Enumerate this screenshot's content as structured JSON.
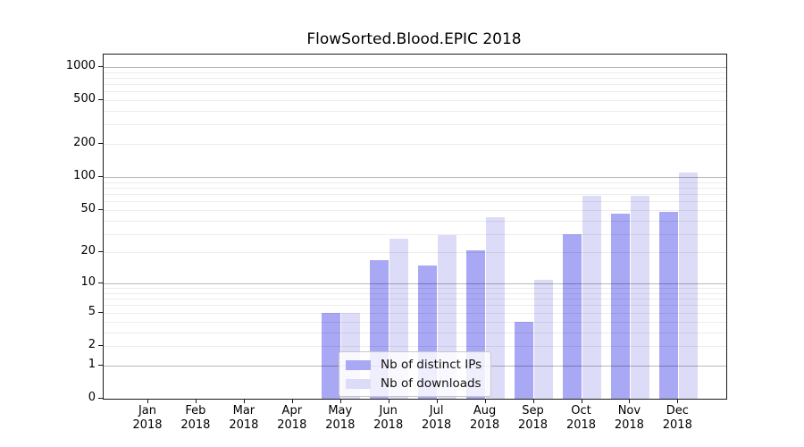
{
  "chart_data": {
    "type": "bar",
    "title": "FlowSorted.Blood.EPIC 2018",
    "months": [
      "Jan",
      "Feb",
      "Mar",
      "Apr",
      "May",
      "Jun",
      "Jul",
      "Aug",
      "Sep",
      "Oct",
      "Nov",
      "Dec"
    ],
    "year": "2018",
    "series": [
      {
        "name": "Nb of distinct IPs",
        "color": "#a8a8f5",
        "values": [
          0,
          0,
          0,
          0,
          5,
          17,
          15,
          21,
          4,
          30,
          46,
          48
        ]
      },
      {
        "name": "Nb of downloads",
        "color": "#dcdcf8",
        "values": [
          0,
          0,
          0,
          0,
          5,
          27,
          29,
          43,
          11,
          68,
          68,
          111
        ]
      }
    ],
    "xlabel": "",
    "ylabel": "",
    "y_scale": "log10(1+y)",
    "ylim": [
      0,
      1000
    ],
    "y_ticks": [
      0,
      1,
      2,
      5,
      10,
      20,
      50,
      100,
      200,
      500,
      1000
    ],
    "grid": {
      "major_lines": [
        1,
        10,
        100,
        1000
      ],
      "minor_lines": [
        2,
        3,
        4,
        5,
        6,
        7,
        8,
        9,
        20,
        30,
        40,
        50,
        60,
        70,
        80,
        90,
        200,
        300,
        400,
        500,
        600,
        700,
        800,
        900
      ]
    },
    "legend_position": "inside-bottom-center"
  }
}
